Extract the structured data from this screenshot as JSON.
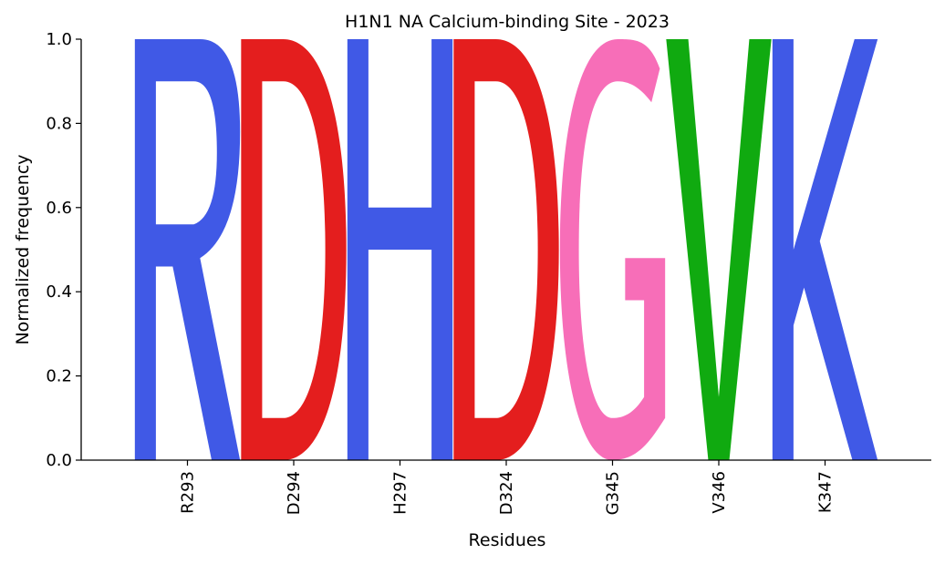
{
  "chart_data": {
    "type": "sequence-logo",
    "title": "H1N1 NA Calcium-binding Site - 2023",
    "xlabel": "Residues",
    "ylabel": "Normalized frequency",
    "ylim": [
      0,
      1
    ],
    "yticks": [
      "0.0",
      "0.2",
      "0.4",
      "0.6",
      "0.8",
      "1.0"
    ],
    "positions": [
      "R293",
      "D294",
      "H297",
      "D324",
      "G345",
      "V346",
      "K347"
    ],
    "letters": [
      {
        "position": "R293",
        "letter": "R",
        "frequency": 1.0,
        "color": "#4059E6"
      },
      {
        "position": "D294",
        "letter": "D",
        "frequency": 1.0,
        "color": "#E41E1E"
      },
      {
        "position": "H297",
        "letter": "H",
        "frequency": 1.0,
        "color": "#4059E6"
      },
      {
        "position": "D324",
        "letter": "D",
        "frequency": 1.0,
        "color": "#E41E1E"
      },
      {
        "position": "G345",
        "letter": "G",
        "frequency": 1.0,
        "color": "#F76EB8"
      },
      {
        "position": "V346",
        "letter": "V",
        "frequency": 1.0,
        "color": "#10AA10"
      },
      {
        "position": "K347",
        "letter": "K",
        "frequency": 1.0,
        "color": "#4059E6"
      }
    ]
  }
}
